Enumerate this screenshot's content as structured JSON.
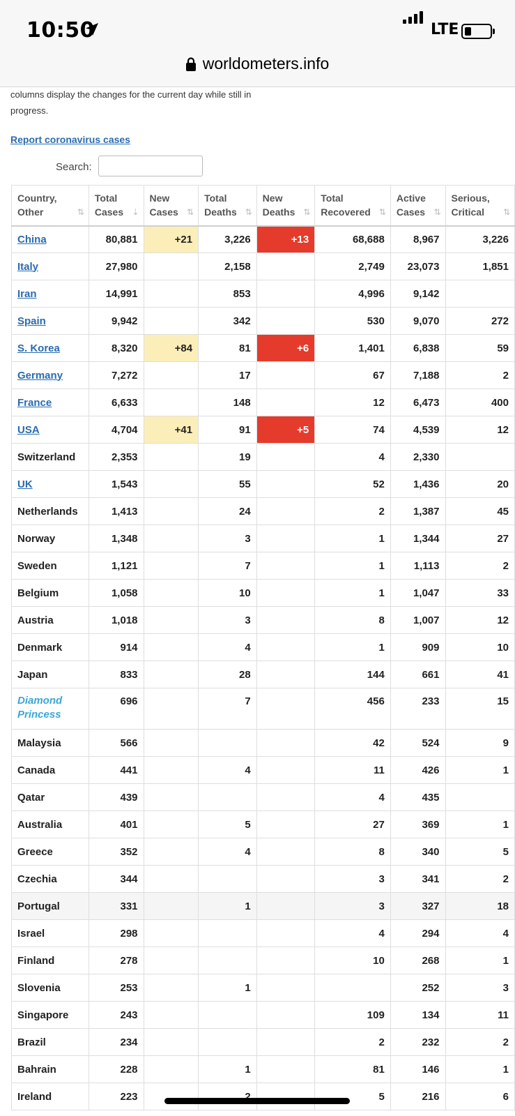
{
  "status_bar": {
    "time": "10:50",
    "network": "LTE"
  },
  "url_bar": {
    "domain": "worldometers.info"
  },
  "intro_text": "columns display the changes for the current day while still in progress.",
  "report_link": "Report coronavirus cases",
  "search": {
    "label": "Search:",
    "value": ""
  },
  "table": {
    "headers": [
      {
        "line1": "Country,",
        "line2": "Other",
        "sort": "⇅"
      },
      {
        "line1": "Total",
        "line2": "Cases",
        "sort": "⇣"
      },
      {
        "line1": "New",
        "line2": "Cases",
        "sort": "⇅"
      },
      {
        "line1": "Total",
        "line2": "Deaths",
        "sort": "⇅"
      },
      {
        "line1": "New",
        "line2": "Deaths",
        "sort": "⇅"
      },
      {
        "line1": "Total",
        "line2": "Recovered",
        "sort": "⇅"
      },
      {
        "line1": "Active",
        "line2": "Cases",
        "sort": "⇅"
      },
      {
        "line1": "Serious,",
        "line2": "Critical",
        "sort": "⇅"
      }
    ],
    "rows": [
      {
        "country": "China",
        "link": true,
        "total_cases": "80,881",
        "new_cases": "+21",
        "total_deaths": "3,226",
        "new_deaths": "+13",
        "total_recovered": "68,688",
        "active_cases": "8,967",
        "serious_critical": "3,226"
      },
      {
        "country": "Italy",
        "link": true,
        "total_cases": "27,980",
        "new_cases": "",
        "total_deaths": "2,158",
        "new_deaths": "",
        "total_recovered": "2,749",
        "active_cases": "23,073",
        "serious_critical": "1,851"
      },
      {
        "country": "Iran",
        "link": true,
        "total_cases": "14,991",
        "new_cases": "",
        "total_deaths": "853",
        "new_deaths": "",
        "total_recovered": "4,996",
        "active_cases": "9,142",
        "serious_critical": ""
      },
      {
        "country": "Spain",
        "link": true,
        "total_cases": "9,942",
        "new_cases": "",
        "total_deaths": "342",
        "new_deaths": "",
        "total_recovered": "530",
        "active_cases": "9,070",
        "serious_critical": "272"
      },
      {
        "country": "S. Korea",
        "link": true,
        "total_cases": "8,320",
        "new_cases": "+84",
        "total_deaths": "81",
        "new_deaths": "+6",
        "total_recovered": "1,401",
        "active_cases": "6,838",
        "serious_critical": "59"
      },
      {
        "country": "Germany",
        "link": true,
        "total_cases": "7,272",
        "new_cases": "",
        "total_deaths": "17",
        "new_deaths": "",
        "total_recovered": "67",
        "active_cases": "7,188",
        "serious_critical": "2"
      },
      {
        "country": "France",
        "link": true,
        "total_cases": "6,633",
        "new_cases": "",
        "total_deaths": "148",
        "new_deaths": "",
        "total_recovered": "12",
        "active_cases": "6,473",
        "serious_critical": "400"
      },
      {
        "country": "USA",
        "link": true,
        "total_cases": "4,704",
        "new_cases": "+41",
        "total_deaths": "91",
        "new_deaths": "+5",
        "total_recovered": "74",
        "active_cases": "4,539",
        "serious_critical": "12"
      },
      {
        "country": "Switzerland",
        "link": false,
        "total_cases": "2,353",
        "new_cases": "",
        "total_deaths": "19",
        "new_deaths": "",
        "total_recovered": "4",
        "active_cases": "2,330",
        "serious_critical": ""
      },
      {
        "country": "UK",
        "link": true,
        "total_cases": "1,543",
        "new_cases": "",
        "total_deaths": "55",
        "new_deaths": "",
        "total_recovered": "52",
        "active_cases": "1,436",
        "serious_critical": "20"
      },
      {
        "country": "Netherlands",
        "link": false,
        "total_cases": "1,413",
        "new_cases": "",
        "total_deaths": "24",
        "new_deaths": "",
        "total_recovered": "2",
        "active_cases": "1,387",
        "serious_critical": "45"
      },
      {
        "country": "Norway",
        "link": false,
        "total_cases": "1,348",
        "new_cases": "",
        "total_deaths": "3",
        "new_deaths": "",
        "total_recovered": "1",
        "active_cases": "1,344",
        "serious_critical": "27"
      },
      {
        "country": "Sweden",
        "link": false,
        "total_cases": "1,121",
        "new_cases": "",
        "total_deaths": "7",
        "new_deaths": "",
        "total_recovered": "1",
        "active_cases": "1,113",
        "serious_critical": "2"
      },
      {
        "country": "Belgium",
        "link": false,
        "total_cases": "1,058",
        "new_cases": "",
        "total_deaths": "10",
        "new_deaths": "",
        "total_recovered": "1",
        "active_cases": "1,047",
        "serious_critical": "33"
      },
      {
        "country": "Austria",
        "link": false,
        "total_cases": "1,018",
        "new_cases": "",
        "total_deaths": "3",
        "new_deaths": "",
        "total_recovered": "8",
        "active_cases": "1,007",
        "serious_critical": "12"
      },
      {
        "country": "Denmark",
        "link": false,
        "total_cases": "914",
        "new_cases": "",
        "total_deaths": "4",
        "new_deaths": "",
        "total_recovered": "1",
        "active_cases": "909",
        "serious_critical": "10"
      },
      {
        "country": "Japan",
        "link": false,
        "total_cases": "833",
        "new_cases": "",
        "total_deaths": "28",
        "new_deaths": "",
        "total_recovered": "144",
        "active_cases": "661",
        "serious_critical": "41"
      },
      {
        "country": "Diamond Princess",
        "ship": true,
        "total_cases": "696",
        "new_cases": "",
        "total_deaths": "7",
        "new_deaths": "",
        "total_recovered": "456",
        "active_cases": "233",
        "serious_critical": "15"
      },
      {
        "country": "Malaysia",
        "link": false,
        "total_cases": "566",
        "new_cases": "",
        "total_deaths": "",
        "new_deaths": "",
        "total_recovered": "42",
        "active_cases": "524",
        "serious_critical": "9"
      },
      {
        "country": "Canada",
        "link": false,
        "total_cases": "441",
        "new_cases": "",
        "total_deaths": "4",
        "new_deaths": "",
        "total_recovered": "11",
        "active_cases": "426",
        "serious_critical": "1"
      },
      {
        "country": "Qatar",
        "link": false,
        "total_cases": "439",
        "new_cases": "",
        "total_deaths": "",
        "new_deaths": "",
        "total_recovered": "4",
        "active_cases": "435",
        "serious_critical": ""
      },
      {
        "country": "Australia",
        "link": false,
        "total_cases": "401",
        "new_cases": "",
        "total_deaths": "5",
        "new_deaths": "",
        "total_recovered": "27",
        "active_cases": "369",
        "serious_critical": "1"
      },
      {
        "country": "Greece",
        "link": false,
        "total_cases": "352",
        "new_cases": "",
        "total_deaths": "4",
        "new_deaths": "",
        "total_recovered": "8",
        "active_cases": "340",
        "serious_critical": "5"
      },
      {
        "country": "Czechia",
        "link": false,
        "total_cases": "344",
        "new_cases": "",
        "total_deaths": "",
        "new_deaths": "",
        "total_recovered": "3",
        "active_cases": "341",
        "serious_critical": "2"
      },
      {
        "country": "Portugal",
        "link": false,
        "highlight": true,
        "total_cases": "331",
        "new_cases": "",
        "total_deaths": "1",
        "new_deaths": "",
        "total_recovered": "3",
        "active_cases": "327",
        "serious_critical": "18"
      },
      {
        "country": "Israel",
        "link": false,
        "total_cases": "298",
        "new_cases": "",
        "total_deaths": "",
        "new_deaths": "",
        "total_recovered": "4",
        "active_cases": "294",
        "serious_critical": "4"
      },
      {
        "country": "Finland",
        "link": false,
        "total_cases": "278",
        "new_cases": "",
        "total_deaths": "",
        "new_deaths": "",
        "total_recovered": "10",
        "active_cases": "268",
        "serious_critical": "1"
      },
      {
        "country": "Slovenia",
        "link": false,
        "total_cases": "253",
        "new_cases": "",
        "total_deaths": "1",
        "new_deaths": "",
        "total_recovered": "",
        "active_cases": "252",
        "serious_critical": "3"
      },
      {
        "country": "Singapore",
        "link": false,
        "total_cases": "243",
        "new_cases": "",
        "total_deaths": "",
        "new_deaths": "",
        "total_recovered": "109",
        "active_cases": "134",
        "serious_critical": "11"
      },
      {
        "country": "Brazil",
        "link": false,
        "total_cases": "234",
        "new_cases": "",
        "total_deaths": "",
        "new_deaths": "",
        "total_recovered": "2",
        "active_cases": "232",
        "serious_critical": "2"
      },
      {
        "country": "Bahrain",
        "link": false,
        "total_cases": "228",
        "new_cases": "",
        "total_deaths": "1",
        "new_deaths": "",
        "total_recovered": "81",
        "active_cases": "146",
        "serious_critical": "1"
      },
      {
        "country": "Ireland",
        "link": false,
        "total_cases": "223",
        "new_cases": "",
        "total_deaths": "2",
        "new_deaths": "",
        "total_recovered": "5",
        "active_cases": "216",
        "serious_critical": "6"
      }
    ]
  }
}
